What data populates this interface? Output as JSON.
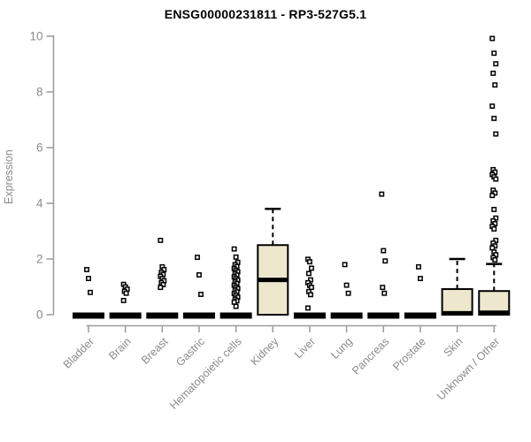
{
  "window": {
    "background": "#ffffff"
  },
  "chart_data": {
    "type": "boxplot",
    "title": "ENSG00000231811 - RP3-527G5.1",
    "ylabel": "Expression",
    "xlabel": "",
    "ylim": [
      0,
      10
    ],
    "yticks": [
      0,
      2,
      4,
      6,
      8,
      10
    ],
    "grid": false,
    "legend": "none",
    "colors": {
      "box_fill": "#EDE8CD",
      "box_stroke": "#000000",
      "median": "#000000",
      "whisker": "#000000",
      "outlier_stroke": "#000000",
      "outlier_fill": "#ffffff",
      "axis": "#9a9a9a",
      "tick_label": "#8a8a8a",
      "title": "#000000"
    },
    "categories": [
      {
        "label": "Bladder",
        "q1": 0,
        "median": 0,
        "q3": 0,
        "whisker_low": 0,
        "whisker_high": 0,
        "outliers": [
          1.62,
          1.3,
          0.8
        ]
      },
      {
        "label": "Brain",
        "q1": 0,
        "median": 0,
        "q3": 0,
        "whisker_low": 0,
        "whisker_high": 0,
        "outliers": [
          1.09,
          1.0,
          0.92,
          0.84,
          0.77,
          0.51
        ]
      },
      {
        "label": "Breast",
        "q1": 0,
        "median": 0,
        "q3": 0,
        "whisker_low": 0,
        "whisker_high": 0,
        "outliers": [
          2.67,
          1.72,
          1.62,
          1.52,
          1.45,
          1.38,
          1.3,
          1.22,
          1.15,
          1.08,
          0.98
        ]
      },
      {
        "label": "Gastric",
        "q1": 0,
        "median": 0,
        "q3": 0,
        "whisker_low": 0,
        "whisker_high": 0,
        "outliers": [
          2.06,
          1.43,
          0.73
        ]
      },
      {
        "label": "Hematopoietic cells",
        "q1": 0,
        "median": 0,
        "q3": 0,
        "whisker_low": 0,
        "whisker_high": 0,
        "outliers": [
          2.36,
          2.07,
          1.88,
          1.8,
          1.73,
          1.66,
          1.6,
          1.54,
          1.48,
          1.42,
          1.36,
          1.3,
          1.24,
          1.18,
          1.12,
          1.06,
          1.0,
          0.94,
          0.88,
          0.82,
          0.76,
          0.7,
          0.63,
          0.56,
          0.5,
          0.45,
          0.3
        ]
      },
      {
        "label": "Kidney",
        "q1": 0,
        "median": 1.25,
        "q3": 2.5,
        "whisker_low": 0,
        "whisker_high": 3.8,
        "outliers": []
      },
      {
        "label": "Liver",
        "q1": 0,
        "median": 0,
        "q3": 0,
        "whisker_low": 0,
        "whisker_high": 0.1,
        "outliers": [
          1.99,
          1.9,
          1.67,
          1.48,
          1.25,
          1.15,
          1.05,
          0.98,
          0.83,
          0.72,
          0.24
        ]
      },
      {
        "label": "Lung",
        "q1": 0,
        "median": 0,
        "q3": 0,
        "whisker_low": 0,
        "whisker_high": 0,
        "outliers": [
          1.8,
          1.06,
          0.77
        ]
      },
      {
        "label": "Pancreas",
        "q1": 0,
        "median": 0,
        "q3": 0,
        "whisker_low": 0,
        "whisker_high": 0,
        "outliers": [
          4.33,
          2.3,
          1.93,
          0.98,
          0.77
        ]
      },
      {
        "label": "Prostate",
        "q1": 0,
        "median": 0,
        "q3": 0,
        "whisker_low": 0,
        "whisker_high": 0,
        "outliers": [
          1.72,
          1.3
        ]
      },
      {
        "label": "Skin",
        "q1": 0,
        "median": 0.05,
        "q3": 0.92,
        "whisker_low": 0,
        "whisker_high": 2.0,
        "outliers": []
      },
      {
        "label": "Unknown / Other",
        "q1": 0,
        "median": 0.07,
        "q3": 0.85,
        "whisker_low": 0,
        "whisker_high": 1.82,
        "outliers": [
          9.92,
          9.39,
          9.01,
          8.67,
          8.25,
          7.49,
          7.05,
          6.49,
          5.21,
          5.12,
          5.03,
          4.95,
          4.87,
          4.47,
          4.37,
          4.28,
          3.78,
          3.47,
          3.37,
          3.27,
          3.17,
          3.08,
          2.67,
          2.57,
          2.47,
          2.4,
          2.25,
          2.15,
          2.05,
          1.97
        ]
      }
    ]
  }
}
